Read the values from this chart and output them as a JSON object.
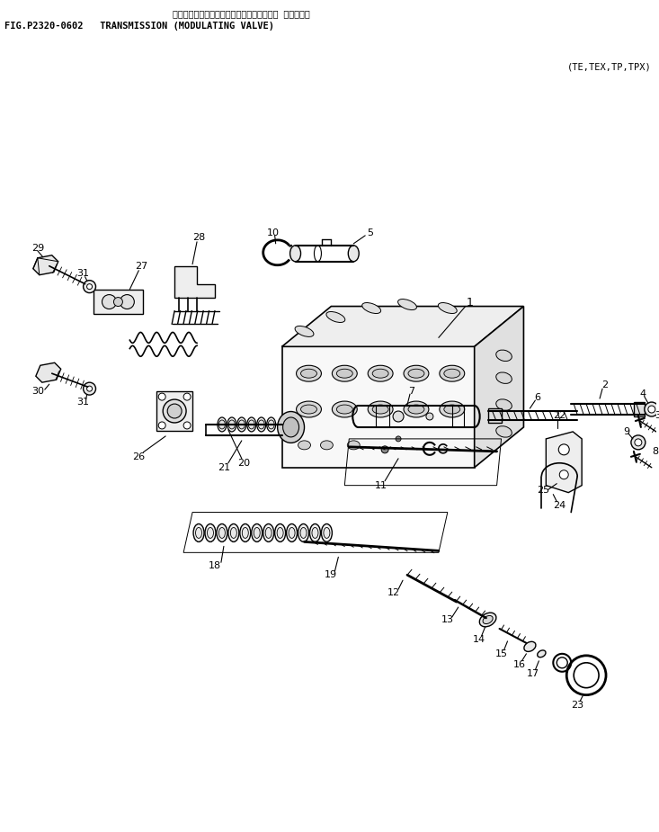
{
  "title_line1": "トランスミッション（モジュレーティング・ ハルプ）",
  "title_line2": "FIG.P2320-0602   TRANSMISSION (MODULATING VALVE)",
  "subtitle": "(TE,TEX,TP,TPX)",
  "bg_color": "#ffffff",
  "lc": "#000000",
  "fig_width": 7.33,
  "fig_height": 9.25,
  "dpi": 100
}
